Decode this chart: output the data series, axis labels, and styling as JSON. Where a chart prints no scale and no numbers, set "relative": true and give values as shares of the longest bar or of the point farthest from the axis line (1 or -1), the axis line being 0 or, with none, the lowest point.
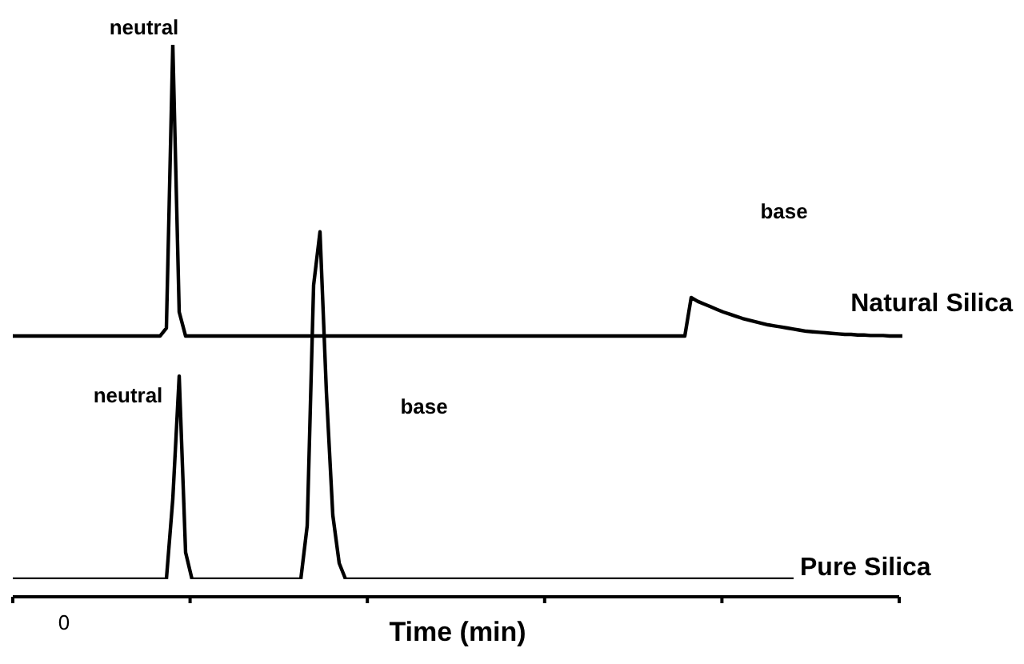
{
  "chart_data": {
    "type": "line",
    "relative": true,
    "xlabel": "Time (min)",
    "legend": false,
    "marker": "none",
    "line_style": "solid",
    "categories": [
      null,
      null,
      null,
      null,
      null,
      null,
      null,
      null,
      null,
      null,
      null,
      null,
      null,
      null,
      null,
      null,
      null,
      null,
      null,
      null,
      null,
      null,
      null,
      null,
      null,
      null,
      null,
      null,
      null,
      null,
      null,
      null,
      null,
      null,
      null,
      null,
      null,
      null,
      null,
      null,
      null,
      null,
      null,
      null,
      null,
      null,
      null,
      null,
      null,
      null,
      null,
      null,
      null,
      null,
      null,
      null,
      null,
      null,
      null,
      null,
      null,
      null,
      null,
      null,
      null,
      null,
      null,
      null,
      null,
      null,
      null,
      null,
      null,
      null,
      null,
      null,
      null,
      null,
      null,
      null,
      null,
      null,
      null,
      null,
      null,
      null,
      null,
      null,
      null,
      null,
      null,
      null,
      null,
      null,
      null,
      null,
      null,
      null,
      null,
      null,
      null,
      null,
      null,
      null,
      null,
      null,
      null,
      null,
      null,
      null,
      null,
      null,
      null,
      null,
      null,
      null,
      null,
      null,
      null,
      null,
      null,
      null,
      null,
      null,
      null,
      null,
      null,
      null,
      null,
      null,
      null,
      null,
      null,
      null,
      null,
      null,
      null,
      null,
      null,
      null
    ],
    "series": [
      {
        "name": "Natural Silica",
        "color": "#000000",
        "values": [
          0.455,
          0.455,
          0.455,
          0.455,
          0.455,
          0.455,
          0.455,
          0.455,
          0.455,
          0.455,
          0.455,
          0.455,
          0.455,
          0.455,
          0.455,
          0.455,
          0.455,
          0.455,
          0.455,
          0.455,
          0.455,
          0.455,
          0.455,
          0.455,
          0.47,
          1.0,
          0.5,
          0.455,
          0.455,
          0.455,
          0.455,
          0.455,
          0.455,
          0.455,
          0.455,
          0.455,
          0.455,
          0.455,
          0.455,
          0.455,
          0.455,
          0.455,
          0.455,
          0.455,
          0.455,
          0.455,
          0.455,
          0.455,
          0.455,
          0.455,
          0.455,
          0.455,
          0.455,
          0.455,
          0.455,
          0.455,
          0.455,
          0.455,
          0.455,
          0.455,
          0.455,
          0.455,
          0.455,
          0.455,
          0.455,
          0.455,
          0.455,
          0.455,
          0.455,
          0.455,
          0.455,
          0.455,
          0.455,
          0.455,
          0.455,
          0.455,
          0.455,
          0.455,
          0.455,
          0.455,
          0.455,
          0.455,
          0.455,
          0.455,
          0.455,
          0.455,
          0.455,
          0.455,
          0.455,
          0.455,
          0.455,
          0.455,
          0.455,
          0.455,
          0.455,
          0.455,
          0.455,
          0.455,
          0.455,
          0.455,
          0.455,
          0.455,
          0.455,
          0.455,
          0.455,
          0.455,
          0.527,
          0.52,
          0.515,
          0.51,
          0.505,
          0.5,
          0.496,
          0.492,
          0.488,
          0.485,
          0.482,
          0.479,
          0.476,
          0.474,
          0.472,
          0.47,
          0.468,
          0.466,
          0.464,
          0.463,
          0.462,
          0.461,
          0.46,
          0.459,
          0.458,
          0.458,
          0.457,
          0.457,
          0.456,
          0.456,
          0.456,
          0.455,
          0.455,
          0.455
        ]
      },
      {
        "name": "Pure Silica",
        "color": "#000000",
        "values": [
          0,
          0,
          0,
          0,
          0,
          0,
          0,
          0,
          0,
          0,
          0,
          0,
          0,
          0,
          0,
          0,
          0,
          0,
          0,
          0,
          0,
          0,
          0,
          0,
          0,
          0.15,
          0.38,
          0.05,
          0,
          0,
          0,
          0,
          0,
          0,
          0,
          0,
          0,
          0,
          0,
          0,
          0,
          0,
          0,
          0,
          0,
          0,
          0.1,
          0.55,
          0.65,
          0.35,
          0.12,
          0.03,
          0,
          0,
          0,
          0,
          0,
          0,
          0,
          0,
          0,
          0,
          0,
          0,
          0,
          0,
          0,
          0,
          0,
          0,
          0,
          0,
          0,
          0,
          0,
          0,
          0,
          0,
          0,
          0,
          0,
          0,
          0,
          0,
          0,
          0,
          0,
          0,
          0,
          0,
          0,
          0,
          0,
          0,
          0,
          0,
          0,
          0,
          0,
          0,
          0,
          0,
          0,
          0,
          0,
          0,
          0,
          0,
          0,
          0,
          0,
          0,
          0,
          0,
          0,
          0,
          0,
          0,
          0,
          0,
          0,
          0,
          0,
          null,
          null,
          null,
          null,
          null,
          null,
          null,
          null,
          null,
          null,
          null,
          null,
          null,
          null,
          null,
          null,
          null
        ]
      }
    ],
    "annotations": [
      "neutral",
      "base",
      "neutral",
      "base",
      "0"
    ]
  }
}
